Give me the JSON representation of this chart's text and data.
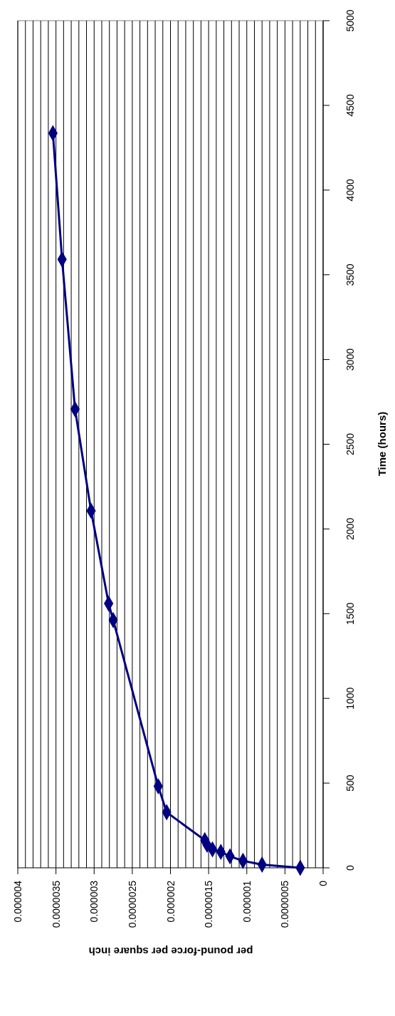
{
  "chart_data": {
    "type": "line",
    "xlabel": "per pound-force per square inch",
    "ylabel": "Time (hours)",
    "x": [
      3e-07,
      8e-07,
      1.05e-06,
      1.22e-06,
      1.34e-06,
      1.45e-06,
      1.52e-06,
      1.55e-06,
      2.05e-06,
      2.16e-06,
      2.75e-06,
      2.81e-06,
      3.04e-06,
      3.25e-06,
      3.42e-06,
      3.54e-06
    ],
    "series": [
      {
        "color": "#000080",
        "values": [
          0,
          19,
          41,
          68,
          94,
          109,
          136,
          163,
          328,
          481,
          1462,
          1560,
          2107,
          2707,
          3591,
          4336
        ]
      }
    ],
    "ylim": [
      0,
      5000
    ],
    "yticks": [
      0,
      500,
      1000,
      1500,
      2000,
      2500,
      3000,
      3500,
      4000,
      4500,
      5000
    ],
    "xlim": [
      4e-06,
      0
    ],
    "xticks": [
      0,
      {
        "value": 1e-07,
        "label": null
      },
      {
        "value": 2e-07,
        "label": null
      },
      {
        "value": 3e-07,
        "label": null
      },
      {
        "value": 4e-07,
        "label": null
      },
      {
        "value": 5e-07,
        "label": "0.0000005"
      },
      {
        "value": 6e-07,
        "label": null
      },
      {
        "value": 7e-07,
        "label": null
      },
      {
        "value": 8e-07,
        "label": null
      },
      {
        "value": 9e-07,
        "label": null
      },
      {
        "value": 1e-06,
        "label": "0.000001"
      },
      {
        "value": 1.1e-06,
        "label": null
      },
      {
        "value": 1.2e-06,
        "label": null
      },
      {
        "value": 1.3e-06,
        "label": null
      },
      {
        "value": 1.4e-06,
        "label": null
      },
      {
        "value": 1.5e-06,
        "label": "0.0000015"
      },
      {
        "value": 1.6e-06,
        "label": null
      },
      {
        "value": 1.7e-06,
        "label": null
      },
      {
        "value": 1.8e-06,
        "label": null
      },
      {
        "value": 1.9e-06,
        "label": null
      },
      {
        "value": 2e-06,
        "label": "0.000002"
      },
      {
        "value": 2.1e-06,
        "label": null
      },
      {
        "value": 2.2e-06,
        "label": null
      },
      {
        "value": 2.3e-06,
        "label": null
      },
      {
        "value": 2.4e-06,
        "label": null
      },
      {
        "value": 2.5e-06,
        "label": "0.0000025"
      },
      {
        "value": 2.6e-06,
        "label": null
      },
      {
        "value": 2.7e-06,
        "label": null
      },
      {
        "value": 2.8e-06,
        "label": null
      },
      {
        "value": 2.9e-06,
        "label": null
      },
      {
        "value": 3e-06,
        "label": "0.000003"
      },
      {
        "value": 3.1e-06,
        "label": null
      },
      {
        "value": 3.2e-06,
        "label": null
      },
      {
        "value": 3.3e-06,
        "label": null
      },
      {
        "value": 3.4e-06,
        "label": null
      },
      {
        "value": 3.5e-06,
        "label": "0.0000035"
      },
      {
        "value": 3.6e-06,
        "label": null
      },
      {
        "value": 3.7e-06,
        "label": null
      },
      {
        "value": 3.8e-06,
        "label": null
      },
      {
        "value": 3.9e-06,
        "label": null
      },
      {
        "value": 4e-06,
        "label": "0.000004"
      }
    ],
    "grid": "x",
    "marker": "diamond",
    "line_style": "solid"
  }
}
